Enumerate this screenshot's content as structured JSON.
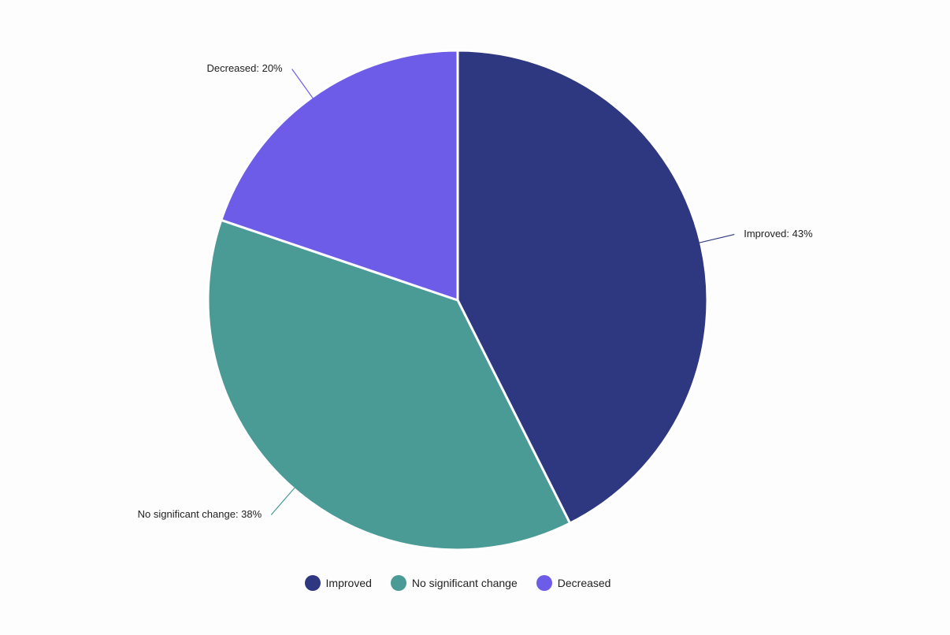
{
  "chart_data": {
    "type": "pie",
    "title": "",
    "slices": [
      {
        "name": "Improved",
        "value": 43,
        "label": "Improved: 43%",
        "color": "#2e3880"
      },
      {
        "name": "No significant change",
        "value": 38,
        "label": "No significant change: 38%",
        "color": "#4a9a96"
      },
      {
        "name": "Decreased",
        "value": 20,
        "label": "Decreased: 20%",
        "color": "#6c5ce7"
      }
    ],
    "legend_position": "bottom"
  }
}
